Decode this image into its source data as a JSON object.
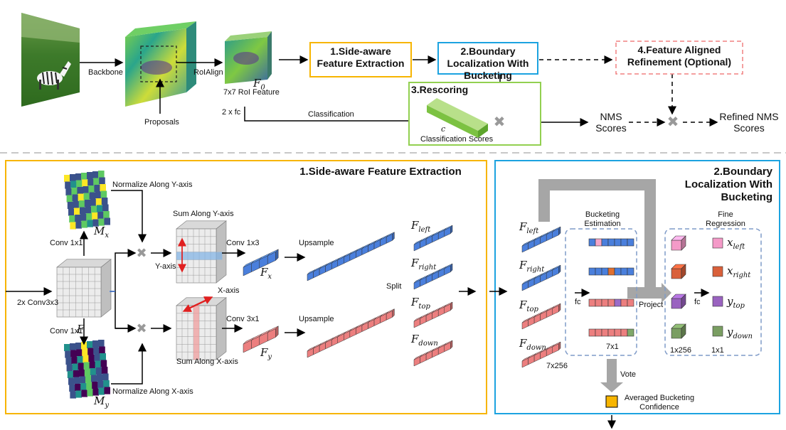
{
  "top": {
    "backbone": "Backbone",
    "proposals": "Proposals",
    "roialign": "RoIAlign",
    "f0": "F",
    "f0_sub": "0",
    "roi_feature": "7x7 RoI Feature",
    "fc2": "2 x fc",
    "classification": "Classification",
    "box1": "1.Side-aware Feature Extraction",
    "box2": "2.Boundary Localization With Bucketing",
    "box3": "3.Rescoring",
    "box4": "4.Feature Aligned Refinement (Optional)",
    "c_label": "c",
    "class_scores": "Classification Scores",
    "nms_scores": "NMS Scores",
    "refined": "Refined NMS Scores"
  },
  "side": {
    "title": "1.Side-aware Feature Extraction",
    "norm_y": "Normalize Along Y-axis",
    "norm_x": "Normalize Along X-axis",
    "sum_y": "Sum Along Y-axis",
    "sum_x": "Sum Along X-axis",
    "yaxis": "Y-axis",
    "xaxis": "X-axis",
    "conv1x1_top": "Conv 1x1",
    "conv1x1_bot": "Conv 1x1",
    "conv2x": "2x Conv3x3",
    "conv1x3": "Conv 1x3",
    "conv3x1": "Conv 3x1",
    "upsample_top": "Upsample",
    "upsample_bot": "Upsample",
    "split": "Split",
    "F": "F",
    "Mx": "M",
    "Mx_sub": "x",
    "My": "M",
    "My_sub": "y",
    "Fx": "F",
    "Fx_sub": "x",
    "Fy": "F",
    "Fy_sub": "y",
    "f_left_sub": "left",
    "f_right_sub": "right",
    "f_top_sub": "top",
    "f_down_sub": "down"
  },
  "bucket": {
    "title": "2.Boundary Localization With Bucketing",
    "bucketing_est": "Bucketing Estimation",
    "fine_reg": "Fine Regression",
    "fc_left": "fc",
    "fc_right": "fc",
    "project": "Project",
    "x7": "7x1",
    "x7_256": "7x256",
    "x1_256": "1x256",
    "x1_1": "1x1",
    "vote": "Vote",
    "avg": "Averaged Bucketing Confidence",
    "F": "F",
    "x_left": "x",
    "x_left_sub": "left",
    "x_right": "x",
    "x_right_sub": "right",
    "y_top": "y",
    "y_top_sub": "top",
    "y_down": "y",
    "y_down_sub": "down",
    "f_left_sub": "left",
    "f_right_sub": "right",
    "f_top_sub": "top",
    "f_down_sub": "down"
  },
  "colors": {
    "orange": "#f7b500",
    "blue": "#1ca3e0",
    "green": "#92d050",
    "pink_dash": "#f08080",
    "dash_blue": "#7f9bc8",
    "cube_blue": "#4a7fdc",
    "cube_red": "#ec7f7f",
    "grey_arrow": "#a6a6a6"
  }
}
